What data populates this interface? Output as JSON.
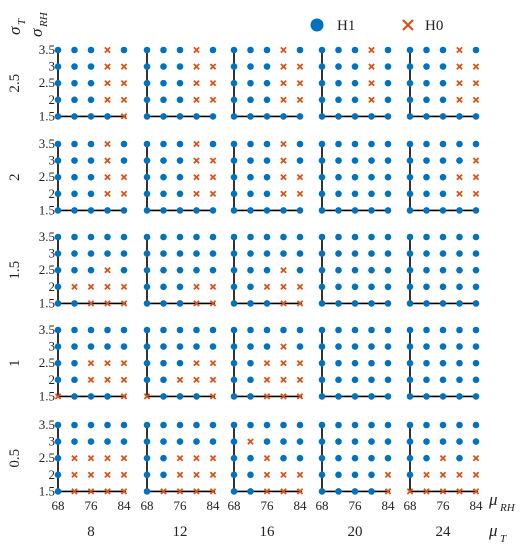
{
  "chart_data": {
    "type": "scatter",
    "legend": {
      "position": "top-right",
      "entries": [
        {
          "label": "H1",
          "marker": "circle",
          "color": "#0072BD"
        },
        {
          "label": "H0",
          "marker": "x",
          "color": "#D95319"
        }
      ]
    },
    "axis_labels": {
      "row_symbol": "σ",
      "row_sub": "T",
      "inner_y_symbol": "σ",
      "inner_y_sub": "RH",
      "inner_x_symbol": "μ",
      "inner_x_sub": "RH",
      "col_symbol": "μ",
      "col_sub": "T"
    },
    "column_values": [
      "8",
      "12",
      "16",
      "20",
      "24"
    ],
    "row_values": [
      "2.5",
      "2",
      "1.5",
      "1",
      "0.5"
    ],
    "inner_x": {
      "values": [
        68,
        72,
        76,
        80,
        84
      ],
      "tick_labels": [
        "68",
        "76",
        "84"
      ],
      "tick_values": [
        68,
        76,
        84
      ],
      "range": [
        68,
        84
      ]
    },
    "inner_y": {
      "values": [
        3.5,
        3,
        2.5,
        2,
        1.5
      ],
      "tick_labels": [
        "3.5",
        "3",
        "2.5",
        "2",
        "1.5"
      ],
      "range": [
        1.5,
        3.5
      ]
    },
    "grid_note": "Rows of each cell map top-to-bottom to inner_y values; columns map left-to-right to inner_x values. 1 = H1, 0 = H0.",
    "cells": [
      [
        [
          [
            1,
            1,
            1,
            0,
            1
          ],
          [
            1,
            1,
            1,
            0,
            0
          ],
          [
            1,
            1,
            1,
            0,
            0
          ],
          [
            1,
            1,
            1,
            0,
            0
          ],
          [
            1,
            1,
            1,
            1,
            0
          ]
        ],
        [
          [
            1,
            1,
            1,
            0,
            1
          ],
          [
            1,
            1,
            1,
            0,
            0
          ],
          [
            1,
            1,
            1,
            0,
            0
          ],
          [
            1,
            1,
            1,
            0,
            0
          ],
          [
            1,
            1,
            1,
            1,
            1
          ]
        ],
        [
          [
            1,
            1,
            1,
            0,
            1
          ],
          [
            1,
            1,
            1,
            0,
            0
          ],
          [
            1,
            1,
            1,
            0,
            0
          ],
          [
            1,
            1,
            1,
            0,
            0
          ],
          [
            1,
            1,
            1,
            1,
            1
          ]
        ],
        [
          [
            1,
            1,
            1,
            0,
            1
          ],
          [
            1,
            1,
            1,
            0,
            1
          ],
          [
            1,
            1,
            1,
            0,
            1
          ],
          [
            1,
            1,
            1,
            0,
            1
          ],
          [
            1,
            1,
            1,
            1,
            1
          ]
        ],
        [
          [
            1,
            1,
            1,
            0,
            1
          ],
          [
            1,
            1,
            1,
            0,
            0
          ],
          [
            1,
            1,
            1,
            0,
            0
          ],
          [
            1,
            1,
            1,
            0,
            0
          ],
          [
            1,
            1,
            1,
            1,
            1
          ]
        ]
      ],
      [
        [
          [
            1,
            1,
            1,
            0,
            1
          ],
          [
            1,
            1,
            1,
            0,
            1
          ],
          [
            1,
            1,
            1,
            0,
            0
          ],
          [
            1,
            1,
            1,
            0,
            0
          ],
          [
            1,
            1,
            1,
            1,
            1
          ]
        ],
        [
          [
            1,
            1,
            1,
            0,
            1
          ],
          [
            1,
            1,
            1,
            0,
            0
          ],
          [
            1,
            1,
            1,
            0,
            0
          ],
          [
            1,
            1,
            1,
            0,
            0
          ],
          [
            1,
            1,
            1,
            1,
            1
          ]
        ],
        [
          [
            1,
            1,
            1,
            0,
            1
          ],
          [
            1,
            1,
            1,
            0,
            1
          ],
          [
            1,
            1,
            1,
            0,
            0
          ],
          [
            1,
            1,
            1,
            0,
            0
          ],
          [
            1,
            1,
            1,
            1,
            1
          ]
        ],
        [
          [
            1,
            1,
            1,
            1,
            1
          ],
          [
            1,
            1,
            1,
            1,
            1
          ],
          [
            1,
            1,
            1,
            1,
            1
          ],
          [
            1,
            1,
            1,
            1,
            1
          ],
          [
            1,
            1,
            1,
            1,
            1
          ]
        ],
        [
          [
            1,
            1,
            1,
            1,
            1
          ],
          [
            1,
            1,
            1,
            1,
            0
          ],
          [
            1,
            1,
            1,
            0,
            0
          ],
          [
            1,
            1,
            1,
            0,
            0
          ],
          [
            1,
            1,
            1,
            1,
            1
          ]
        ]
      ],
      [
        [
          [
            1,
            1,
            1,
            1,
            1
          ],
          [
            1,
            1,
            1,
            1,
            1
          ],
          [
            1,
            1,
            1,
            0,
            1
          ],
          [
            1,
            0,
            0,
            0,
            0
          ],
          [
            1,
            1,
            0,
            0,
            0
          ]
        ],
        [
          [
            1,
            1,
            1,
            1,
            1
          ],
          [
            1,
            1,
            1,
            1,
            1
          ],
          [
            1,
            1,
            1,
            1,
            1
          ],
          [
            1,
            1,
            1,
            0,
            0
          ],
          [
            1,
            1,
            1,
            0,
            0
          ]
        ],
        [
          [
            1,
            1,
            1,
            1,
            1
          ],
          [
            1,
            1,
            1,
            1,
            1
          ],
          [
            1,
            1,
            1,
            0,
            1
          ],
          [
            1,
            1,
            0,
            0,
            0
          ],
          [
            1,
            1,
            1,
            0,
            0
          ]
        ],
        [
          [
            1,
            1,
            1,
            1,
            1
          ],
          [
            1,
            1,
            1,
            1,
            1
          ],
          [
            1,
            1,
            1,
            1,
            1
          ],
          [
            1,
            1,
            1,
            1,
            1
          ],
          [
            1,
            1,
            1,
            1,
            1
          ]
        ],
        [
          [
            1,
            1,
            1,
            1,
            1
          ],
          [
            1,
            1,
            1,
            1,
            1
          ],
          [
            1,
            1,
            1,
            1,
            1
          ],
          [
            1,
            1,
            1,
            1,
            1
          ],
          [
            1,
            1,
            1,
            1,
            1
          ]
        ]
      ],
      [
        [
          [
            1,
            1,
            1,
            1,
            1
          ],
          [
            1,
            1,
            1,
            1,
            1
          ],
          [
            1,
            1,
            0,
            0,
            0
          ],
          [
            1,
            1,
            0,
            0,
            0
          ],
          [
            0,
            1,
            1,
            1,
            0
          ]
        ],
        [
          [
            1,
            1,
            1,
            1,
            1
          ],
          [
            1,
            1,
            1,
            1,
            1
          ],
          [
            1,
            1,
            1,
            0,
            0
          ],
          [
            1,
            1,
            0,
            0,
            0
          ],
          [
            0,
            1,
            1,
            1,
            0
          ]
        ],
        [
          [
            1,
            1,
            1,
            1,
            1
          ],
          [
            1,
            1,
            1,
            0,
            1
          ],
          [
            1,
            1,
            0,
            0,
            0
          ],
          [
            1,
            1,
            0,
            0,
            0
          ],
          [
            1,
            1,
            0,
            0,
            0
          ]
        ],
        [
          [
            1,
            1,
            1,
            1,
            1
          ],
          [
            1,
            1,
            1,
            1,
            1
          ],
          [
            1,
            1,
            1,
            1,
            1
          ],
          [
            1,
            1,
            1,
            1,
            1
          ],
          [
            1,
            1,
            1,
            1,
            1
          ]
        ],
        [
          [
            1,
            1,
            1,
            1,
            1
          ],
          [
            1,
            1,
            1,
            1,
            1
          ],
          [
            1,
            1,
            1,
            1,
            1
          ],
          [
            1,
            1,
            1,
            1,
            1
          ],
          [
            1,
            1,
            1,
            1,
            1
          ]
        ]
      ],
      [
        [
          [
            1,
            1,
            1,
            1,
            1
          ],
          [
            1,
            1,
            1,
            1,
            1
          ],
          [
            1,
            0,
            0,
            0,
            0
          ],
          [
            1,
            0,
            0,
            0,
            0
          ],
          [
            1,
            0,
            0,
            0,
            0
          ]
        ],
        [
          [
            1,
            1,
            1,
            1,
            1
          ],
          [
            1,
            1,
            1,
            1,
            1
          ],
          [
            1,
            1,
            0,
            0,
            0
          ],
          [
            1,
            1,
            0,
            0,
            0
          ],
          [
            1,
            0,
            0,
            0,
            0
          ]
        ],
        [
          [
            1,
            1,
            1,
            1,
            1
          ],
          [
            1,
            0,
            1,
            1,
            1
          ],
          [
            1,
            1,
            0,
            1,
            1
          ],
          [
            1,
            1,
            0,
            0,
            0
          ],
          [
            1,
            1,
            0,
            0,
            0
          ]
        ],
        [
          [
            1,
            1,
            1,
            1,
            1
          ],
          [
            1,
            1,
            1,
            1,
            1
          ],
          [
            1,
            1,
            1,
            1,
            1
          ],
          [
            1,
            1,
            1,
            1,
            0
          ],
          [
            1,
            1,
            1,
            1,
            0
          ]
        ],
        [
          [
            1,
            1,
            1,
            1,
            1
          ],
          [
            1,
            1,
            1,
            1,
            1
          ],
          [
            1,
            1,
            0,
            1,
            0
          ],
          [
            1,
            0,
            0,
            0,
            0
          ],
          [
            0,
            0,
            0,
            0,
            0
          ]
        ]
      ]
    ]
  }
}
